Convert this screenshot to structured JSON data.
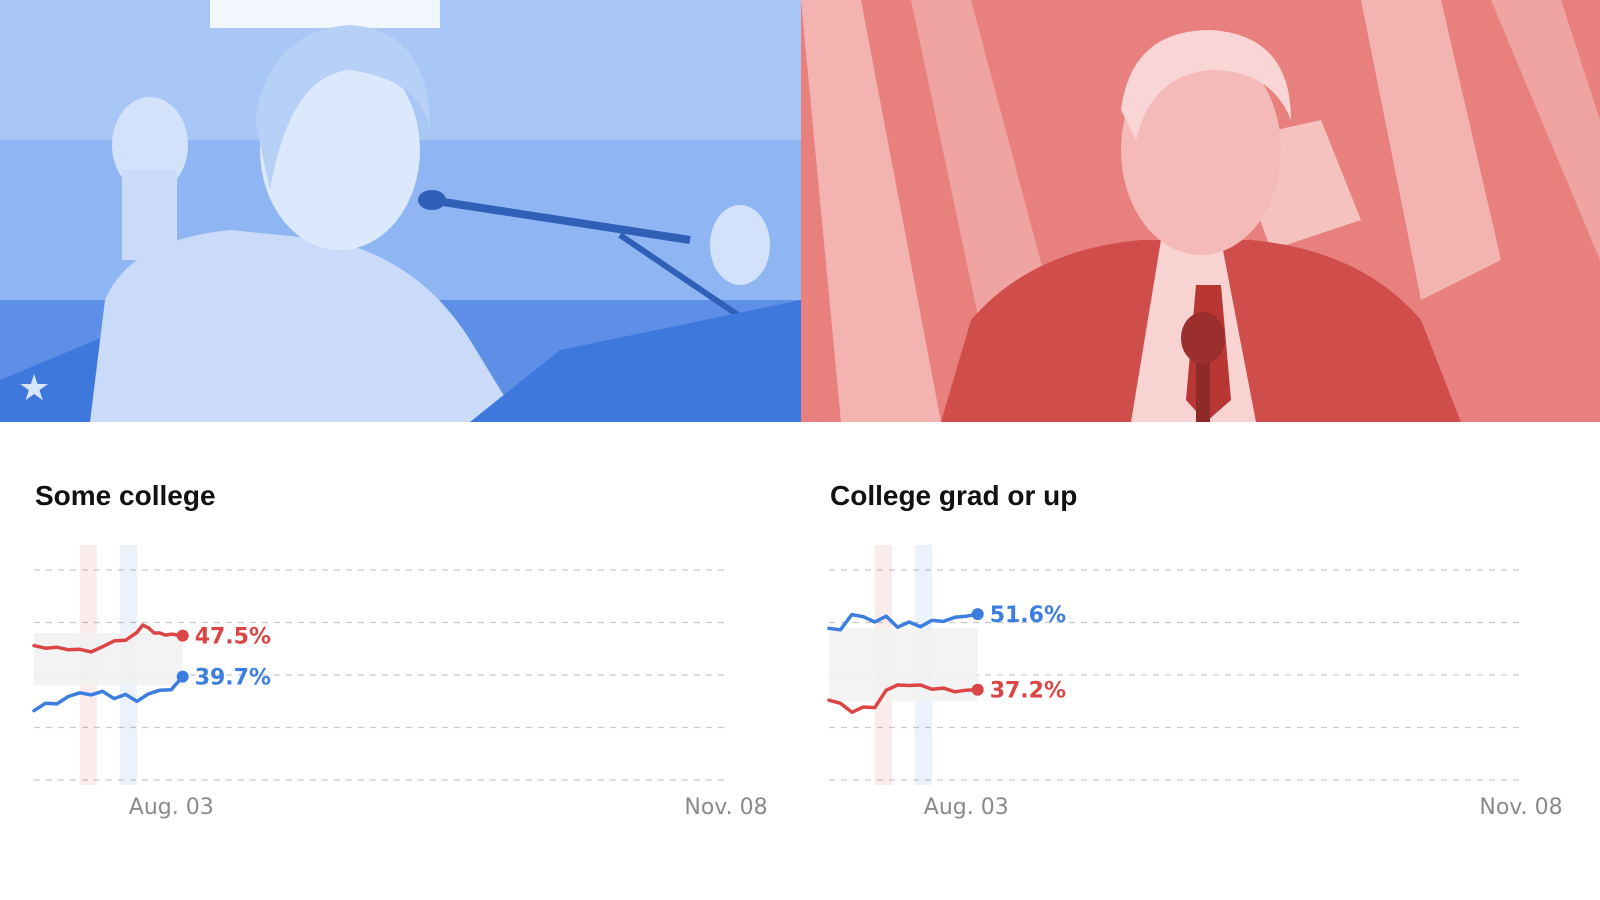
{
  "photos": [
    {
      "subject": "candidate speaking at podium",
      "tint": "#7aa5f0",
      "tint_dark": "#3f78dd"
    },
    {
      "subject": "candidate smiling before flags",
      "tint": "#e26c6a",
      "tint_dark": "#c94846"
    }
  ],
  "colors": {
    "dem": "#3b7ee0",
    "rep": "#db4644",
    "grid": "#c9c9c9",
    "band": "#f1f1f1"
  },
  "chart_data": [
    {
      "type": "line",
      "title": "Some college",
      "x_start": "2016-07-10",
      "x_end": "2016-11-08",
      "x_ticks": [
        {
          "date": "2016-08-03",
          "label": "Aug. 03"
        },
        {
          "date": "2016-11-08",
          "label": "Nov. 08"
        }
      ],
      "ylim": [
        20,
        60
      ],
      "y_gridlines": [
        20,
        30,
        40,
        50,
        60
      ],
      "highlights": [
        {
          "start": "2016-07-18",
          "end": "2016-07-21",
          "color": "#db4644"
        },
        {
          "start": "2016-07-25",
          "end": "2016-07-28",
          "color": "#3b7ee0"
        }
      ],
      "band": {
        "x_start": "2016-07-10",
        "x_end": "2016-08-05",
        "low": 38,
        "high": 48
      },
      "series": [
        {
          "party": "rep",
          "color": "#db4644",
          "label": "47.5%",
          "points": [
            [
              "2016-07-10",
              45.6
            ],
            [
              "2016-07-12",
              45.1
            ],
            [
              "2016-07-14",
              45.3
            ],
            [
              "2016-07-16",
              44.8
            ],
            [
              "2016-07-18",
              44.9
            ],
            [
              "2016-07-20",
              44.4
            ],
            [
              "2016-07-22",
              45.4
            ],
            [
              "2016-07-24",
              46.5
            ],
            [
              "2016-07-26",
              46.6
            ],
            [
              "2016-07-28",
              48.1
            ],
            [
              "2016-07-29",
              49.5
            ],
            [
              "2016-07-30",
              49.0
            ],
            [
              "2016-07-31",
              48.0
            ],
            [
              "2016-08-01",
              48.0
            ],
            [
              "2016-08-02",
              47.6
            ],
            [
              "2016-08-03",
              47.8
            ],
            [
              "2016-08-05",
              47.5
            ]
          ]
        },
        {
          "party": "dem",
          "color": "#3b7ee0",
          "label": "39.7%",
          "points": [
            [
              "2016-07-10",
              33.2
            ],
            [
              "2016-07-12",
              34.6
            ],
            [
              "2016-07-14",
              34.5
            ],
            [
              "2016-07-16",
              35.9
            ],
            [
              "2016-07-18",
              36.6
            ],
            [
              "2016-07-20",
              36.2
            ],
            [
              "2016-07-22",
              36.9
            ],
            [
              "2016-07-24",
              35.5
            ],
            [
              "2016-07-26",
              36.3
            ],
            [
              "2016-07-28",
              35.0
            ],
            [
              "2016-07-30",
              36.4
            ],
            [
              "2016-08-01",
              37.1
            ],
            [
              "2016-08-03",
              37.2
            ],
            [
              "2016-08-05",
              39.7
            ]
          ]
        }
      ]
    },
    {
      "type": "line",
      "title": "College grad or up",
      "x_start": "2016-07-10",
      "x_end": "2016-11-08",
      "x_ticks": [
        {
          "date": "2016-08-03",
          "label": "Aug. 03"
        },
        {
          "date": "2016-11-08",
          "label": "Nov. 08"
        }
      ],
      "ylim": [
        20,
        60
      ],
      "y_gridlines": [
        20,
        30,
        40,
        50,
        60
      ],
      "highlights": [
        {
          "start": "2016-07-18",
          "end": "2016-07-21",
          "color": "#db4644"
        },
        {
          "start": "2016-07-25",
          "end": "2016-07-28",
          "color": "#3b7ee0"
        }
      ],
      "band": {
        "x_start": "2016-07-10",
        "x_end": "2016-08-05",
        "low": 35,
        "high": 49
      },
      "series": [
        {
          "party": "dem",
          "color": "#3b7ee0",
          "label": "51.6%",
          "points": [
            [
              "2016-07-10",
              48.9
            ],
            [
              "2016-07-12",
              48.6
            ],
            [
              "2016-07-14",
              51.5
            ],
            [
              "2016-07-16",
              51.1
            ],
            [
              "2016-07-18",
              50.1
            ],
            [
              "2016-07-20",
              51.2
            ],
            [
              "2016-07-22",
              49.1
            ],
            [
              "2016-07-24",
              50.1
            ],
            [
              "2016-07-26",
              49.2
            ],
            [
              "2016-07-28",
              50.4
            ],
            [
              "2016-07-30",
              50.2
            ],
            [
              "2016-08-01",
              51.0
            ],
            [
              "2016-08-03",
              51.2
            ],
            [
              "2016-08-05",
              51.6
            ]
          ]
        },
        {
          "party": "rep",
          "color": "#db4644",
          "label": "37.2%",
          "points": [
            [
              "2016-07-10",
              35.2
            ],
            [
              "2016-07-12",
              34.6
            ],
            [
              "2016-07-14",
              32.9
            ],
            [
              "2016-07-16",
              33.9
            ],
            [
              "2016-07-18",
              33.8
            ],
            [
              "2016-07-20",
              37.1
            ],
            [
              "2016-07-22",
              38.1
            ],
            [
              "2016-07-24",
              38.0
            ],
            [
              "2016-07-26",
              38.1
            ],
            [
              "2016-07-28",
              37.3
            ],
            [
              "2016-07-30",
              37.5
            ],
            [
              "2016-08-01",
              36.8
            ],
            [
              "2016-08-03",
              37.1
            ],
            [
              "2016-08-05",
              37.2
            ]
          ]
        }
      ]
    }
  ]
}
